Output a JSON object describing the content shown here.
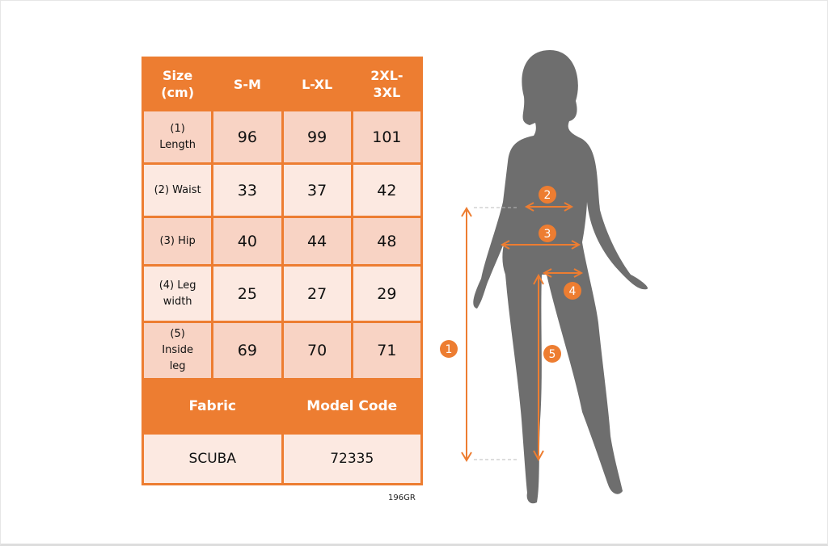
{
  "table": {
    "header": [
      "Size\n(cm)",
      "S-M",
      "L-XL",
      "2XL-\n3XL"
    ],
    "rows": [
      {
        "label": "(1)\nLength",
        "values": [
          "96",
          "99",
          "101"
        ]
      },
      {
        "label": "(2) Waist",
        "values": [
          "33",
          "37",
          "42"
        ]
      },
      {
        "label": "(3) Hip",
        "values": [
          "40",
          "44",
          "48"
        ]
      },
      {
        "label": "(4) Leg\nwidth",
        "values": [
          "25",
          "27",
          "29"
        ]
      },
      {
        "label": "(5)\nInside\nleg",
        "values": [
          "69",
          "70",
          "71"
        ]
      }
    ],
    "fabric_label": "Fabric",
    "model_code_label": "Model Code",
    "fabric_value": "SCUBA",
    "model_code_value": "72335"
  },
  "product_code": "196GR",
  "markers": [
    "1",
    "2",
    "3",
    "4",
    "5"
  ],
  "colors": {
    "accent": "#ED7D31",
    "cell_dark": "#F8D3C4",
    "cell_light": "#FCE9E1",
    "silhouette": "#6E6E6E"
  }
}
